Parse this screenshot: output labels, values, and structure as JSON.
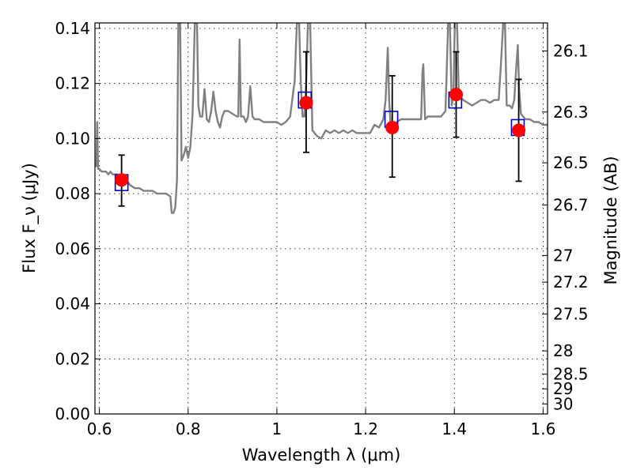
{
  "chart_data": {
    "type": "scatter",
    "xlabel": "Wavelength λ (μm)",
    "ylabel": "Flux F_ν (μJy)",
    "ylabel_right": "Magnitude (AB)",
    "xlim": [
      0.59,
      1.61
    ],
    "ylim": [
      0.0,
      0.142
    ],
    "grid": true,
    "x_ticks": [
      "0.6",
      "0.8",
      "1",
      "1.2",
      "1.4",
      "1.6"
    ],
    "y_ticks": [
      "0.00",
      "0.02",
      "0.04",
      "0.06",
      "0.08",
      "0.10",
      "0.12",
      "0.14"
    ],
    "mag_ticks": [
      "26.1",
      "26.3",
      "26.5",
      "26.7",
      "27",
      "27.2",
      "27.5",
      "28",
      "28.5",
      "29",
      "30"
    ],
    "series": [
      {
        "type": "line",
        "color": "#808080",
        "points": [
          [
            0.59,
            0.091
          ],
          [
            0.593,
            0.09
          ],
          [
            0.595,
            0.106
          ],
          [
            0.597,
            0.089
          ],
          [
            0.6,
            0.089
          ],
          [
            0.605,
            0.088
          ],
          [
            0.61,
            0.088
          ],
          [
            0.615,
            0.088
          ],
          [
            0.62,
            0.087
          ],
          [
            0.625,
            0.088
          ],
          [
            0.63,
            0.087
          ],
          [
            0.635,
            0.087
          ],
          [
            0.64,
            0.087
          ],
          [
            0.65,
            0.086
          ],
          [
            0.66,
            0.085
          ],
          [
            0.67,
            0.083
          ],
          [
            0.68,
            0.082
          ],
          [
            0.69,
            0.082
          ],
          [
            0.7,
            0.081
          ],
          [
            0.71,
            0.081
          ],
          [
            0.72,
            0.081
          ],
          [
            0.73,
            0.08
          ],
          [
            0.74,
            0.08
          ],
          [
            0.75,
            0.08
          ],
          [
            0.76,
            0.079
          ],
          [
            0.763,
            0.073
          ],
          [
            0.767,
            0.073
          ],
          [
            0.771,
            0.075
          ],
          [
            0.775,
            0.085
          ],
          [
            0.778,
            0.142
          ],
          [
            0.782,
            0.142
          ],
          [
            0.785,
            0.092
          ],
          [
            0.79,
            0.094
          ],
          [
            0.795,
            0.097
          ],
          [
            0.8,
            0.093
          ],
          [
            0.805,
            0.097
          ],
          [
            0.81,
            0.109
          ],
          [
            0.815,
            0.142
          ],
          [
            0.82,
            0.142
          ],
          [
            0.823,
            0.112
          ],
          [
            0.827,
            0.108
          ],
          [
            0.832,
            0.108
          ],
          [
            0.837,
            0.118
          ],
          [
            0.842,
            0.107
          ],
          [
            0.847,
            0.106
          ],
          [
            0.852,
            0.11
          ],
          [
            0.857,
            0.117
          ],
          [
            0.862,
            0.11
          ],
          [
            0.867,
            0.106
          ],
          [
            0.872,
            0.104
          ],
          [
            0.877,
            0.108
          ],
          [
            0.882,
            0.11
          ],
          [
            0.89,
            0.11
          ],
          [
            0.9,
            0.109
          ],
          [
            0.91,
            0.108
          ],
          [
            0.913,
            0.108
          ],
          [
            0.916,
            0.136
          ],
          [
            0.919,
            0.108
          ],
          [
            0.925,
            0.108
          ],
          [
            0.93,
            0.106
          ],
          [
            0.935,
            0.108
          ],
          [
            0.94,
            0.119
          ],
          [
            0.945,
            0.108
          ],
          [
            0.95,
            0.107
          ],
          [
            0.96,
            0.107
          ],
          [
            0.97,
            0.106
          ],
          [
            0.98,
            0.106
          ],
          [
            0.99,
            0.106
          ],
          [
            1.0,
            0.106
          ],
          [
            1.01,
            0.105
          ],
          [
            1.02,
            0.106
          ],
          [
            1.03,
            0.108
          ],
          [
            1.04,
            0.121
          ],
          [
            1.045,
            0.142
          ],
          [
            1.05,
            0.142
          ],
          [
            1.054,
            0.12
          ],
          [
            1.058,
            0.108
          ],
          [
            1.062,
            0.108
          ],
          [
            1.066,
            0.12
          ],
          [
            1.07,
            0.142
          ],
          [
            1.075,
            0.142
          ],
          [
            1.08,
            0.103
          ],
          [
            1.09,
            0.101
          ],
          [
            1.1,
            0.1
          ],
          [
            1.11,
            0.103
          ],
          [
            1.12,
            0.102
          ],
          [
            1.13,
            0.103
          ],
          [
            1.14,
            0.102
          ],
          [
            1.15,
            0.103
          ],
          [
            1.16,
            0.102
          ],
          [
            1.17,
            0.103
          ],
          [
            1.18,
            0.102
          ],
          [
            1.19,
            0.102
          ],
          [
            1.2,
            0.102
          ],
          [
            1.21,
            0.102
          ],
          [
            1.22,
            0.105
          ],
          [
            1.23,
            0.104
          ],
          [
            1.24,
            0.107
          ],
          [
            1.245,
            0.114
          ],
          [
            1.25,
            0.133
          ],
          [
            1.253,
            0.114
          ],
          [
            1.256,
            0.106
          ],
          [
            1.26,
            0.104
          ],
          [
            1.265,
            0.104
          ],
          [
            1.27,
            0.106
          ],
          [
            1.28,
            0.107
          ],
          [
            1.29,
            0.107
          ],
          [
            1.3,
            0.107
          ],
          [
            1.31,
            0.107
          ],
          [
            1.32,
            0.107
          ],
          [
            1.325,
            0.107
          ],
          [
            1.328,
            0.124
          ],
          [
            1.33,
            0.127
          ],
          [
            1.334,
            0.107
          ],
          [
            1.34,
            0.108
          ],
          [
            1.35,
            0.108
          ],
          [
            1.36,
            0.108
          ],
          [
            1.37,
            0.108
          ],
          [
            1.38,
            0.11
          ],
          [
            1.386,
            0.142
          ],
          [
            1.39,
            0.142
          ],
          [
            1.394,
            0.112
          ],
          [
            1.398,
            0.116
          ],
          [
            1.401,
            0.142
          ],
          [
            1.406,
            0.142
          ],
          [
            1.41,
            0.116
          ],
          [
            1.42,
            0.114
          ],
          [
            1.43,
            0.113
          ],
          [
            1.44,
            0.112
          ],
          [
            1.45,
            0.113
          ],
          [
            1.46,
            0.114
          ],
          [
            1.47,
            0.114
          ],
          [
            1.48,
            0.113
          ],
          [
            1.49,
            0.114
          ],
          [
            1.5,
            0.114
          ],
          [
            1.506,
            0.13
          ],
          [
            1.51,
            0.142
          ],
          [
            1.514,
            0.142
          ],
          [
            1.518,
            0.112
          ],
          [
            1.525,
            0.112
          ],
          [
            1.53,
            0.111
          ],
          [
            1.535,
            0.114
          ],
          [
            1.54,
            0.127
          ],
          [
            1.543,
            0.134
          ],
          [
            1.546,
            0.118
          ],
          [
            1.55,
            0.109
          ],
          [
            1.56,
            0.107
          ],
          [
            1.57,
            0.107
          ],
          [
            1.58,
            0.106
          ],
          [
            1.59,
            0.106
          ],
          [
            1.6,
            0.105
          ],
          [
            1.61,
            0.105
          ]
        ]
      },
      {
        "type": "scatter",
        "marker": "square",
        "color": "#0000cc",
        "points": [
          [
            0.65,
            0.084
          ],
          [
            1.063,
            0.114
          ],
          [
            1.258,
            0.107
          ],
          [
            1.402,
            0.114
          ],
          [
            1.543,
            0.104
          ]
        ]
      },
      {
        "type": "scatter",
        "marker": "circle",
        "color": "#ff0000",
        "points": [
          [
            0.65,
            0.085
          ],
          [
            1.066,
            0.113
          ],
          [
            1.26,
            0.104
          ],
          [
            1.404,
            0.116
          ],
          [
            1.545,
            0.103
          ]
        ],
        "yerr_low": [
          0.0755,
          0.095,
          0.086,
          0.1005,
          0.0845
        ],
        "yerr_high": [
          0.094,
          0.1315,
          0.1228,
          0.1315,
          0.1215
        ]
      }
    ],
    "colors": {
      "axis": "#000000",
      "grid": "#000000",
      "overlap": "#990099"
    }
  }
}
